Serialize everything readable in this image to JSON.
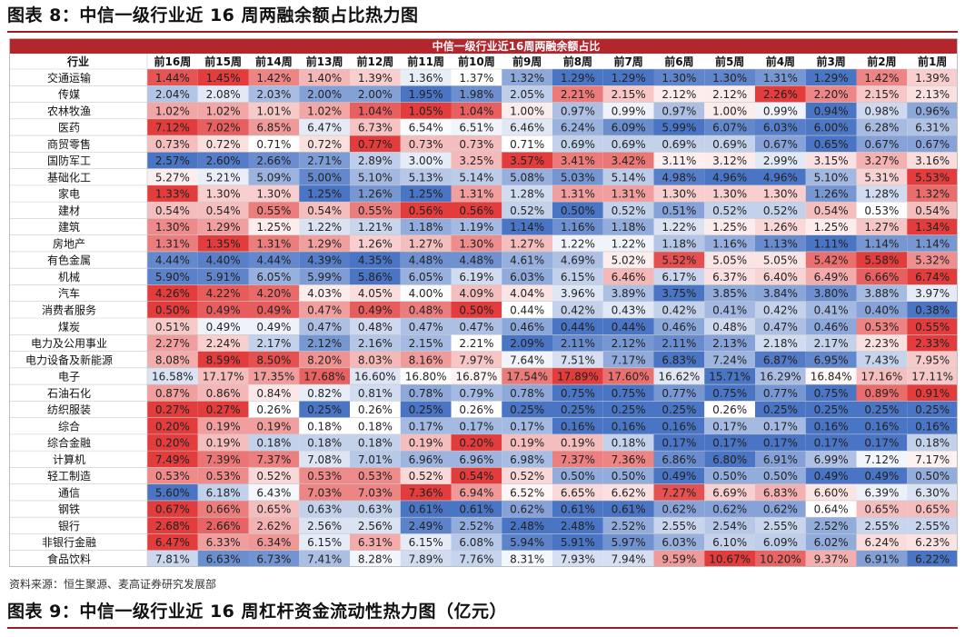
{
  "figure_title": "图表 8：中信一级行业近 16 周两融余额占比热力图",
  "source": "资料来源：恒生聚源、麦高证券研究发展部",
  "next_figure_title": "图表 9：中信一级行业近 16 周杠杆资金流动性热力图（亿元）",
  "colors": {
    "banner": "#b5252c",
    "low": "#4a74c4",
    "mid": "#ffffff",
    "high": "#e23c3c",
    "rule": "#9a1f24"
  },
  "chart_data": {
    "type": "heatmap",
    "title": "中信一级行业近16周两融余额占比",
    "corner_label": "行业",
    "columns": [
      "前16周",
      "前15周",
      "前14周",
      "前13周",
      "前12周",
      "前11周",
      "前10周",
      "前9周",
      "前8周",
      "前7周",
      "前6周",
      "前5周",
      "前4周",
      "前3周",
      "前2周",
      "前1周"
    ],
    "color_scale": "per-row: blue = row minimum, white = middle, red = row maximum",
    "rows": [
      {
        "name": "交通运输",
        "values": [
          "1.44%",
          "1.45%",
          "1.42%",
          "1.40%",
          "1.39%",
          "1.36%",
          "1.37%",
          "1.32%",
          "1.29%",
          "1.29%",
          "1.30%",
          "1.30%",
          "1.31%",
          "1.29%",
          "1.42%",
          "1.39%"
        ]
      },
      {
        "name": "传媒",
        "values": [
          "2.04%",
          "2.08%",
          "2.03%",
          "2.00%",
          "2.00%",
          "1.95%",
          "1.98%",
          "2.05%",
          "2.21%",
          "2.15%",
          "2.12%",
          "2.12%",
          "2.26%",
          "2.20%",
          "2.15%",
          "2.13%"
        ]
      },
      {
        "name": "农林牧渔",
        "values": [
          "1.02%",
          "1.02%",
          "1.01%",
          "1.02%",
          "1.04%",
          "1.05%",
          "1.04%",
          "1.00%",
          "0.97%",
          "0.99%",
          "0.97%",
          "1.00%",
          "0.99%",
          "0.94%",
          "0.98%",
          "0.96%"
        ]
      },
      {
        "name": "医药",
        "values": [
          "7.12%",
          "7.02%",
          "6.85%",
          "6.47%",
          "6.73%",
          "6.54%",
          "6.51%",
          "6.46%",
          "6.24%",
          "6.09%",
          "5.99%",
          "6.07%",
          "6.03%",
          "6.00%",
          "6.28%",
          "6.31%"
        ]
      },
      {
        "name": "商贸零售",
        "values": [
          "0.73%",
          "0.72%",
          "0.71%",
          "0.72%",
          "0.77%",
          "0.73%",
          "0.73%",
          "0.71%",
          "0.69%",
          "0.69%",
          "0.69%",
          "0.69%",
          "0.67%",
          "0.65%",
          "0.67%",
          "0.67%"
        ]
      },
      {
        "name": "国防军工",
        "values": [
          "2.57%",
          "2.60%",
          "2.66%",
          "2.71%",
          "2.89%",
          "3.00%",
          "3.25%",
          "3.57%",
          "3.41%",
          "3.42%",
          "3.11%",
          "3.12%",
          "2.99%",
          "3.15%",
          "3.27%",
          "3.16%"
        ]
      },
      {
        "name": "基础化工",
        "values": [
          "5.27%",
          "5.21%",
          "5.09%",
          "5.00%",
          "5.10%",
          "5.13%",
          "5.14%",
          "5.08%",
          "5.03%",
          "5.14%",
          "4.98%",
          "4.96%",
          "4.96%",
          "5.10%",
          "5.31%",
          "5.53%"
        ]
      },
      {
        "name": "家电",
        "values": [
          "1.33%",
          "1.30%",
          "1.30%",
          "1.25%",
          "1.26%",
          "1.25%",
          "1.31%",
          "1.28%",
          "1.31%",
          "1.31%",
          "1.30%",
          "1.30%",
          "1.30%",
          "1.26%",
          "1.28%",
          "1.32%"
        ]
      },
      {
        "name": "建材",
        "values": [
          "0.54%",
          "0.54%",
          "0.55%",
          "0.54%",
          "0.55%",
          "0.56%",
          "0.56%",
          "0.52%",
          "0.50%",
          "0.52%",
          "0.51%",
          "0.52%",
          "0.52%",
          "0.54%",
          "0.53%",
          "0.54%"
        ]
      },
      {
        "name": "建筑",
        "values": [
          "1.30%",
          "1.29%",
          "1.25%",
          "1.22%",
          "1.21%",
          "1.18%",
          "1.19%",
          "1.14%",
          "1.16%",
          "1.18%",
          "1.22%",
          "1.25%",
          "1.26%",
          "1.25%",
          "1.27%",
          "1.34%"
        ]
      },
      {
        "name": "房地产",
        "values": [
          "1.31%",
          "1.35%",
          "1.31%",
          "1.29%",
          "1.26%",
          "1.27%",
          "1.30%",
          "1.27%",
          "1.22%",
          "1.22%",
          "1.18%",
          "1.16%",
          "1.13%",
          "1.11%",
          "1.14%",
          "1.14%"
        ]
      },
      {
        "name": "有色金属",
        "values": [
          "4.44%",
          "4.40%",
          "4.44%",
          "4.39%",
          "4.35%",
          "4.48%",
          "4.48%",
          "4.61%",
          "4.69%",
          "5.02%",
          "5.52%",
          "5.05%",
          "5.05%",
          "5.42%",
          "5.58%",
          "5.32%"
        ]
      },
      {
        "name": "机械",
        "values": [
          "5.90%",
          "5.91%",
          "6.05%",
          "5.99%",
          "5.86%",
          "6.05%",
          "6.19%",
          "6.03%",
          "6.15%",
          "6.46%",
          "6.17%",
          "6.37%",
          "6.40%",
          "6.49%",
          "6.66%",
          "6.74%"
        ]
      },
      {
        "name": "汽车",
        "values": [
          "4.26%",
          "4.22%",
          "4.20%",
          "4.03%",
          "4.05%",
          "4.00%",
          "4.09%",
          "4.04%",
          "3.96%",
          "3.89%",
          "3.75%",
          "3.85%",
          "3.84%",
          "3.80%",
          "3.88%",
          "3.97%"
        ]
      },
      {
        "name": "消费者服务",
        "values": [
          "0.50%",
          "0.49%",
          "0.49%",
          "0.47%",
          "0.49%",
          "0.48%",
          "0.50%",
          "0.44%",
          "0.42%",
          "0.43%",
          "0.42%",
          "0.41%",
          "0.42%",
          "0.41%",
          "0.40%",
          "0.38%"
        ]
      },
      {
        "name": "煤炭",
        "values": [
          "0.51%",
          "0.49%",
          "0.49%",
          "0.47%",
          "0.48%",
          "0.47%",
          "0.47%",
          "0.46%",
          "0.44%",
          "0.44%",
          "0.46%",
          "0.48%",
          "0.47%",
          "0.46%",
          "0.53%",
          "0.55%"
        ]
      },
      {
        "name": "电力及公用事业",
        "values": [
          "2.27%",
          "2.24%",
          "2.17%",
          "2.12%",
          "2.16%",
          "2.15%",
          "2.21%",
          "2.09%",
          "2.11%",
          "2.12%",
          "2.11%",
          "2.13%",
          "2.18%",
          "2.17%",
          "2.23%",
          "2.33%"
        ]
      },
      {
        "name": "电力设备及新能源",
        "values": [
          "8.08%",
          "8.59%",
          "8.50%",
          "8.20%",
          "8.03%",
          "8.16%",
          "7.97%",
          "7.64%",
          "7.51%",
          "7.17%",
          "6.83%",
          "7.24%",
          "6.87%",
          "6.95%",
          "7.43%",
          "7.95%"
        ]
      },
      {
        "name": "电子",
        "values": [
          "16.58%",
          "17.17%",
          "17.35%",
          "17.68%",
          "16.60%",
          "16.80%",
          "16.87%",
          "17.54%",
          "17.89%",
          "17.60%",
          "16.62%",
          "15.71%",
          "16.29%",
          "16.84%",
          "17.16%",
          "17.11%"
        ]
      },
      {
        "name": "石油石化",
        "values": [
          "0.87%",
          "0.86%",
          "0.84%",
          "0.82%",
          "0.81%",
          "0.78%",
          "0.79%",
          "0.78%",
          "0.75%",
          "0.75%",
          "0.77%",
          "0.75%",
          "0.77%",
          "0.75%",
          "0.89%",
          "0.91%"
        ]
      },
      {
        "name": "纺织服装",
        "values": [
          "0.27%",
          "0.27%",
          "0.26%",
          "0.25%",
          "0.26%",
          "0.25%",
          "0.26%",
          "0.25%",
          "0.25%",
          "0.25%",
          "0.25%",
          "0.26%",
          "0.25%",
          "0.25%",
          "0.25%",
          "0.25%"
        ]
      },
      {
        "name": "综合",
        "values": [
          "0.20%",
          "0.19%",
          "0.19%",
          "0.18%",
          "0.18%",
          "0.17%",
          "0.17%",
          "0.17%",
          "0.16%",
          "0.16%",
          "0.16%",
          "0.17%",
          "0.17%",
          "0.16%",
          "0.16%",
          "0.16%"
        ]
      },
      {
        "name": "综合金融",
        "values": [
          "0.20%",
          "0.19%",
          "0.18%",
          "0.18%",
          "0.18%",
          "0.19%",
          "0.20%",
          "0.19%",
          "0.19%",
          "0.18%",
          "0.17%",
          "0.17%",
          "0.17%",
          "0.17%",
          "0.17%",
          "0.18%"
        ]
      },
      {
        "name": "计算机",
        "values": [
          "7.49%",
          "7.39%",
          "7.37%",
          "7.08%",
          "7.01%",
          "6.96%",
          "6.96%",
          "6.98%",
          "7.37%",
          "7.36%",
          "6.86%",
          "6.80%",
          "6.91%",
          "6.99%",
          "7.12%",
          "7.17%"
        ]
      },
      {
        "name": "轻工制造",
        "values": [
          "0.53%",
          "0.53%",
          "0.52%",
          "0.53%",
          "0.53%",
          "0.52%",
          "0.54%",
          "0.52%",
          "0.50%",
          "0.50%",
          "0.49%",
          "0.50%",
          "0.50%",
          "0.49%",
          "0.49%",
          "0.50%"
        ]
      },
      {
        "name": "通信",
        "values": [
          "5.60%",
          "6.18%",
          "6.43%",
          "7.03%",
          "7.03%",
          "7.36%",
          "6.94%",
          "6.52%",
          "6.65%",
          "6.62%",
          "7.27%",
          "6.69%",
          "6.83%",
          "6.60%",
          "6.39%",
          "6.30%"
        ]
      },
      {
        "name": "钢铁",
        "values": [
          "0.67%",
          "0.66%",
          "0.65%",
          "0.63%",
          "0.63%",
          "0.61%",
          "0.61%",
          "0.62%",
          "0.61%",
          "0.61%",
          "0.62%",
          "0.62%",
          "0.62%",
          "0.64%",
          "0.65%",
          "0.65%"
        ]
      },
      {
        "name": "银行",
        "values": [
          "2.68%",
          "2.66%",
          "2.62%",
          "2.56%",
          "2.56%",
          "2.49%",
          "2.52%",
          "2.48%",
          "2.48%",
          "2.52%",
          "2.55%",
          "2.54%",
          "2.55%",
          "2.52%",
          "2.55%",
          "2.55%"
        ]
      },
      {
        "name": "非银行金融",
        "values": [
          "6.47%",
          "6.33%",
          "6.34%",
          "6.15%",
          "6.31%",
          "6.15%",
          "6.08%",
          "5.94%",
          "5.91%",
          "5.97%",
          "6.03%",
          "6.10%",
          "6.09%",
          "6.02%",
          "6.24%",
          "6.23%"
        ]
      },
      {
        "name": "食品饮料",
        "values": [
          "7.81%",
          "6.63%",
          "6.73%",
          "7.41%",
          "8.28%",
          "7.89%",
          "7.76%",
          "8.31%",
          "7.93%",
          "7.94%",
          "9.59%",
          "10.67%",
          "10.20%",
          "9.37%",
          "6.91%",
          "6.22%"
        ]
      }
    ]
  }
}
